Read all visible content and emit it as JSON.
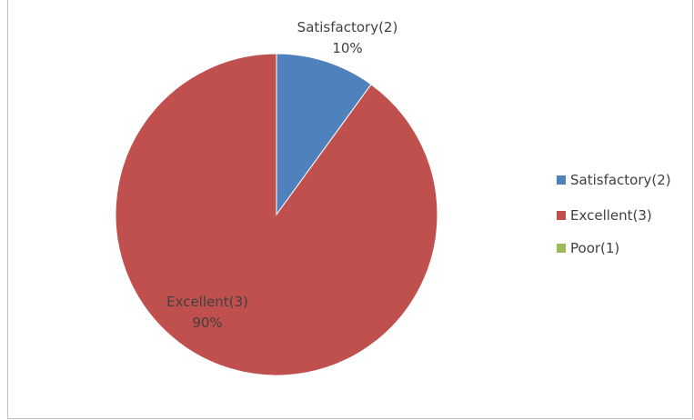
{
  "chart_data": {
    "type": "pie",
    "title": "",
    "slices": [
      {
        "label": "Satisfactory(2)",
        "value": 10,
        "percent_label": "10%",
        "color": "#4F81BD"
      },
      {
        "label": "Excellent(3)",
        "value": 90,
        "percent_label": "90%",
        "color": "#C0504D"
      },
      {
        "label": "Poor(1)",
        "value": 0,
        "percent_label": "",
        "color": "#9BBB59"
      }
    ],
    "legend": {
      "position": "right",
      "items": [
        {
          "label": "Satisfactory(2)",
          "color": "#4F81BD"
        },
        {
          "label": "Excellent(3)",
          "color": "#C0504D"
        },
        {
          "label": "Poor(1)",
          "color": "#9BBB59"
        }
      ]
    }
  }
}
